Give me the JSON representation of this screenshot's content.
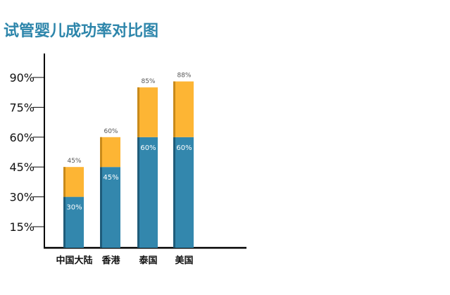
{
  "chart_data": {
    "type": "bar",
    "title": "试管婴儿成功率对比图",
    "categories": [
      "中国大陆",
      "香港",
      "泰国",
      "美国"
    ],
    "series": [
      {
        "values": [
          30,
          45,
          60,
          60
        ]
      },
      {
        "values": [
          45,
          60,
          85,
          88
        ]
      }
    ],
    "inner_labels": [
      "30%",
      "45%",
      "60%",
      "60%"
    ],
    "top_labels": [
      "45%",
      "60%",
      "85%",
      "88%"
    ],
    "yticks": [
      "15%",
      "30%",
      "45%",
      "60%",
      "75%",
      "90%"
    ],
    "ytick_values": [
      15,
      30,
      45,
      60,
      75,
      90
    ],
    "ylim": [
      0,
      100
    ],
    "colors": {
      "base": "#3387ad",
      "base_edge": "#1f5c7a",
      "top": "#fdb534",
      "top_edge": "#c98a1a",
      "title": "#2e86ab",
      "axis": "#000000"
    },
    "grid": false
  }
}
